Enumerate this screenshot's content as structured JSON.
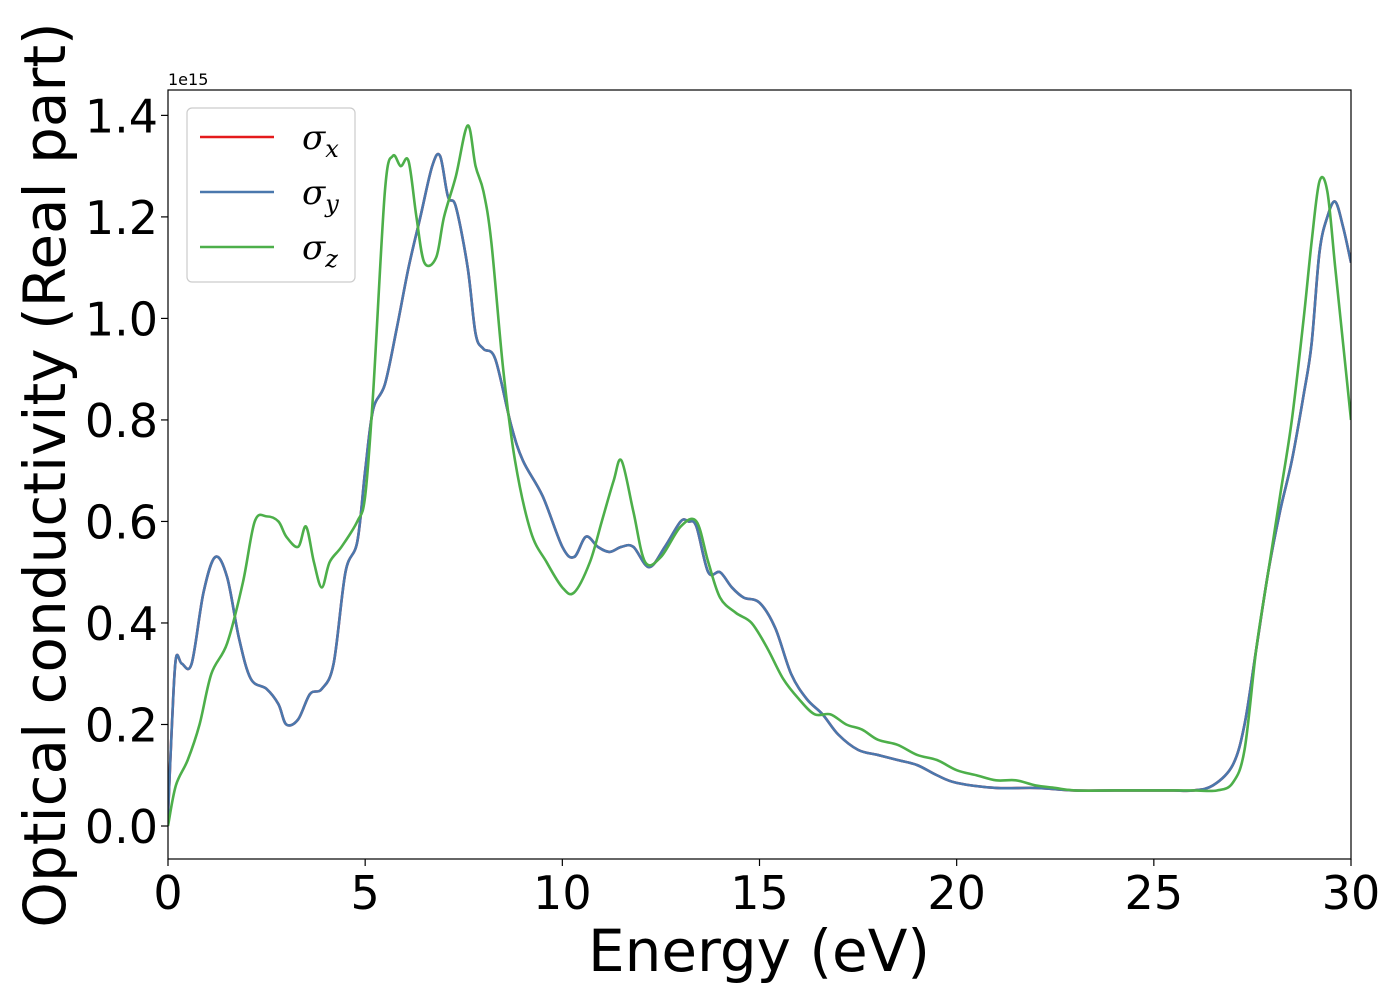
{
  "chart_data": {
    "type": "line",
    "title": "",
    "xlabel": "Energy (eV)",
    "ylabel": "Optical conductivity (Real part)",
    "y_offset_label": "1e15",
    "xlim": [
      0,
      30
    ],
    "ylim": [
      -0.065,
      1.45
    ],
    "xticks": [
      0,
      5,
      10,
      15,
      20,
      25,
      30
    ],
    "xtick_labels": [
      "0",
      "5",
      "10",
      "15",
      "20",
      "25",
      "30"
    ],
    "yticks": [
      0.0,
      0.2,
      0.4,
      0.6,
      0.8,
      1.0,
      1.2,
      1.4
    ],
    "ytick_labels": [
      "0.0",
      "0.2",
      "0.4",
      "0.6",
      "0.8",
      "1.0",
      "1.2",
      "1.4"
    ],
    "grid": false,
    "legend_position": "top-left",
    "series": [
      {
        "name": "σ",
        "subscript": "x",
        "color": "#e41a1c",
        "x": [
          0,
          0.1,
          0.2,
          0.35,
          0.6,
          0.9,
          1.2,
          1.5,
          1.8,
          2.1,
          2.5,
          2.8,
          3.0,
          3.3,
          3.6,
          3.9,
          4.2,
          4.5,
          4.8,
          5.0,
          5.2,
          5.5,
          5.8,
          6.1,
          6.4,
          6.7,
          6.9,
          7.1,
          7.3,
          7.6,
          7.8,
          8.0,
          8.3,
          8.7,
          9.0,
          9.5,
          10.0,
          10.3,
          10.6,
          10.9,
          11.2,
          11.5,
          11.8,
          12.2,
          12.6,
          13.0,
          13.2,
          13.4,
          13.7,
          14.0,
          14.3,
          14.6,
          15.0,
          15.4,
          15.8,
          16.2,
          16.6,
          17.0,
          17.5,
          18.0,
          18.5,
          19.0,
          19.5,
          20.0,
          21.0,
          22.0,
          23.0,
          24.0,
          25.0,
          25.5,
          26.0,
          26.5,
          27.0,
          27.3,
          27.6,
          27.9,
          28.2,
          28.5,
          28.8,
          29.0,
          29.2,
          29.4,
          29.6,
          29.8,
          30.0
        ],
        "y": [
          0.02,
          0.2,
          0.33,
          0.32,
          0.32,
          0.46,
          0.53,
          0.49,
          0.37,
          0.29,
          0.27,
          0.24,
          0.2,
          0.21,
          0.26,
          0.27,
          0.32,
          0.5,
          0.56,
          0.7,
          0.82,
          0.87,
          0.98,
          1.1,
          1.2,
          1.3,
          1.32,
          1.24,
          1.22,
          1.1,
          0.97,
          0.94,
          0.92,
          0.79,
          0.72,
          0.65,
          0.55,
          0.53,
          0.57,
          0.55,
          0.54,
          0.55,
          0.55,
          0.51,
          0.55,
          0.6,
          0.6,
          0.59,
          0.5,
          0.5,
          0.47,
          0.45,
          0.44,
          0.39,
          0.3,
          0.25,
          0.22,
          0.18,
          0.15,
          0.14,
          0.13,
          0.12,
          0.1,
          0.085,
          0.075,
          0.075,
          0.07,
          0.07,
          0.07,
          0.07,
          0.07,
          0.08,
          0.12,
          0.2,
          0.35,
          0.5,
          0.62,
          0.72,
          0.85,
          0.95,
          1.13,
          1.2,
          1.23,
          1.18,
          1.11
        ]
      },
      {
        "name": "σ",
        "subscript": "y",
        "color": "#4a78ad",
        "x": [
          0,
          0.1,
          0.2,
          0.35,
          0.6,
          0.9,
          1.2,
          1.5,
          1.8,
          2.1,
          2.5,
          2.8,
          3.0,
          3.3,
          3.6,
          3.9,
          4.2,
          4.5,
          4.8,
          5.0,
          5.2,
          5.5,
          5.8,
          6.1,
          6.4,
          6.7,
          6.9,
          7.1,
          7.3,
          7.6,
          7.8,
          8.0,
          8.3,
          8.7,
          9.0,
          9.5,
          10.0,
          10.3,
          10.6,
          10.9,
          11.2,
          11.5,
          11.8,
          12.2,
          12.6,
          13.0,
          13.2,
          13.4,
          13.7,
          14.0,
          14.3,
          14.6,
          15.0,
          15.4,
          15.8,
          16.2,
          16.6,
          17.0,
          17.5,
          18.0,
          18.5,
          19.0,
          19.5,
          20.0,
          21.0,
          22.0,
          23.0,
          24.0,
          25.0,
          25.5,
          26.0,
          26.5,
          27.0,
          27.3,
          27.6,
          27.9,
          28.2,
          28.5,
          28.8,
          29.0,
          29.2,
          29.4,
          29.6,
          29.8,
          30.0
        ],
        "y": [
          0.02,
          0.2,
          0.33,
          0.32,
          0.32,
          0.46,
          0.53,
          0.49,
          0.37,
          0.29,
          0.27,
          0.24,
          0.2,
          0.21,
          0.26,
          0.27,
          0.32,
          0.5,
          0.56,
          0.7,
          0.82,
          0.87,
          0.98,
          1.1,
          1.2,
          1.3,
          1.32,
          1.24,
          1.22,
          1.1,
          0.97,
          0.94,
          0.92,
          0.79,
          0.72,
          0.65,
          0.55,
          0.53,
          0.57,
          0.55,
          0.54,
          0.55,
          0.55,
          0.51,
          0.55,
          0.6,
          0.6,
          0.59,
          0.5,
          0.5,
          0.47,
          0.45,
          0.44,
          0.39,
          0.3,
          0.25,
          0.22,
          0.18,
          0.15,
          0.14,
          0.13,
          0.12,
          0.1,
          0.085,
          0.075,
          0.075,
          0.07,
          0.07,
          0.07,
          0.07,
          0.07,
          0.08,
          0.12,
          0.2,
          0.35,
          0.5,
          0.62,
          0.72,
          0.85,
          0.95,
          1.13,
          1.2,
          1.23,
          1.18,
          1.11
        ]
      },
      {
        "name": "σ",
        "subscript": "z",
        "color": "#4daf4a",
        "x": [
          0,
          0.2,
          0.5,
          0.8,
          1.1,
          1.5,
          1.9,
          2.2,
          2.5,
          2.8,
          3.0,
          3.3,
          3.5,
          3.7,
          3.9,
          4.1,
          4.4,
          4.8,
          5.0,
          5.2,
          5.5,
          5.7,
          5.9,
          6.1,
          6.3,
          6.5,
          6.8,
          7.0,
          7.3,
          7.6,
          7.8,
          8.0,
          8.2,
          8.5,
          8.8,
          9.2,
          9.6,
          10.0,
          10.3,
          10.7,
          11.0,
          11.3,
          11.5,
          11.8,
          12.1,
          12.5,
          13.0,
          13.4,
          13.7,
          14.0,
          14.4,
          14.8,
          15.2,
          15.6,
          16.0,
          16.4,
          16.8,
          17.2,
          17.6,
          18.0,
          18.5,
          19.0,
          19.5,
          20.0,
          20.5,
          21.0,
          21.5,
          22.0,
          22.5,
          23.0,
          24.0,
          25.0,
          26.0,
          26.6,
          27.0,
          27.3,
          27.6,
          27.9,
          28.2,
          28.5,
          28.8,
          29.0,
          29.2,
          29.4,
          29.6,
          29.8,
          30.0
        ],
        "y": [
          0.0,
          0.08,
          0.13,
          0.2,
          0.3,
          0.36,
          0.48,
          0.6,
          0.61,
          0.6,
          0.57,
          0.55,
          0.59,
          0.52,
          0.47,
          0.52,
          0.55,
          0.6,
          0.65,
          0.85,
          1.25,
          1.32,
          1.3,
          1.31,
          1.2,
          1.11,
          1.12,
          1.2,
          1.28,
          1.38,
          1.3,
          1.25,
          1.15,
          0.9,
          0.72,
          0.58,
          0.52,
          0.47,
          0.46,
          0.52,
          0.6,
          0.68,
          0.72,
          0.62,
          0.52,
          0.53,
          0.59,
          0.6,
          0.52,
          0.45,
          0.42,
          0.4,
          0.35,
          0.29,
          0.25,
          0.22,
          0.22,
          0.2,
          0.19,
          0.17,
          0.16,
          0.14,
          0.13,
          0.11,
          0.1,
          0.09,
          0.09,
          0.08,
          0.075,
          0.07,
          0.07,
          0.07,
          0.07,
          0.07,
          0.085,
          0.15,
          0.35,
          0.5,
          0.65,
          0.8,
          1.0,
          1.15,
          1.27,
          1.25,
          1.1,
          0.95,
          0.8
        ]
      }
    ]
  }
}
